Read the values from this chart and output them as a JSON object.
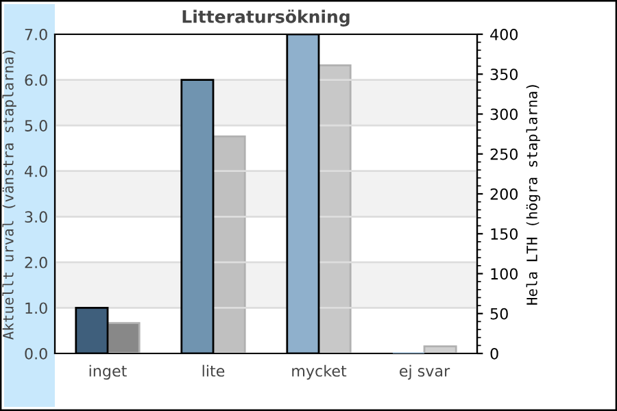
{
  "chart_data": {
    "type": "bar",
    "title": "Litteratursökning",
    "ylabel": "Aktuellt urval (vänstra staplarna)",
    "y2label": "Hela LTH (högra staplarna)",
    "categories": [
      "inget",
      "lite",
      "mycket",
      "ej svar"
    ],
    "series": [
      {
        "colors": [
          "#3f5f7c",
          "#7094b0",
          "#8fb0cc",
          "#8fb0cc"
        ],
        "values": [
          1.0,
          6.0,
          7.0,
          0
        ]
      },
      {
        "colors": [
          "#888888",
          "#c0c0c0",
          "#c8c8c8",
          "#d0d0d0"
        ],
        "values": [
          38,
          272,
          361,
          9
        ],
        "axis": "y2"
      }
    ],
    "ylim": [
      0,
      7
    ],
    "yticks": [
      {
        "value": 0,
        "label": "0.0"
      },
      {
        "value": 1,
        "label": "1.0"
      },
      {
        "value": 2,
        "label": "2.0"
      },
      {
        "value": 3,
        "label": "3.0"
      },
      {
        "value": 4,
        "label": "4.0"
      },
      {
        "value": 5,
        "label": "5.0"
      },
      {
        "value": 6,
        "label": "6.0"
      },
      {
        "value": 7,
        "label": "7.0"
      }
    ],
    "bands": [
      {
        "axis": "y",
        "from": 1,
        "to": 2,
        "color": "#f2f2f2"
      },
      {
        "axis": "y",
        "from": 3,
        "to": 4,
        "color": "#f2f2f2"
      },
      {
        "axis": "y",
        "from": 5,
        "to": 6,
        "color": "#f2f2f2"
      }
    ],
    "y2lim": [
      0,
      400
    ],
    "y2ticks": [
      0,
      50,
      100,
      150,
      200,
      250,
      300,
      350,
      400
    ],
    "grid": "y",
    "legend": false
  }
}
